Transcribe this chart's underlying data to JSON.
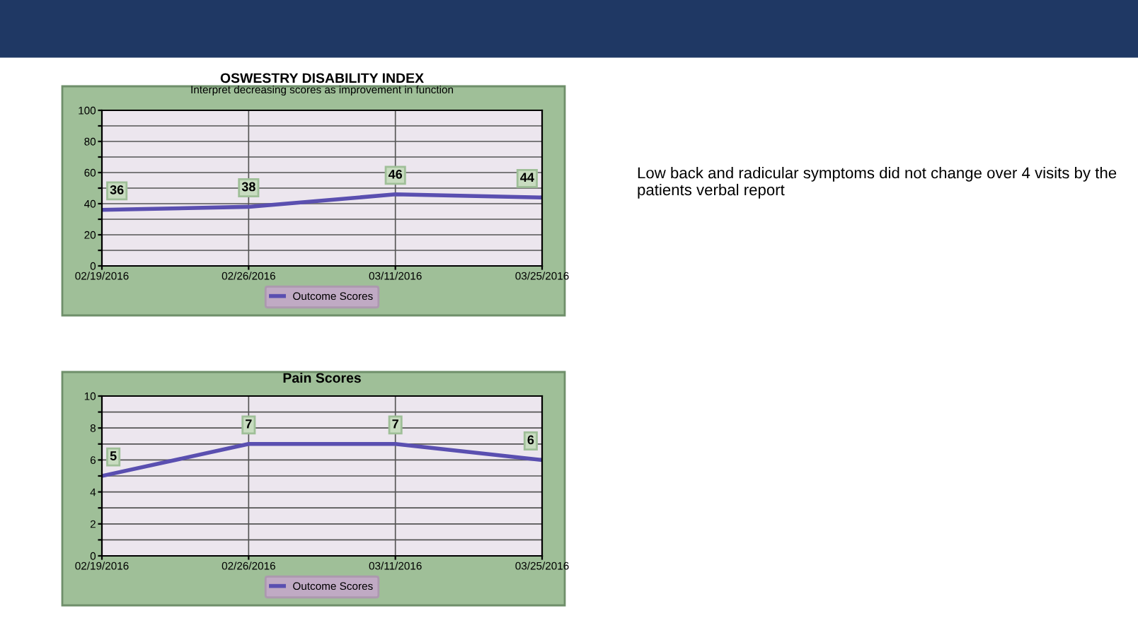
{
  "chart_data": [
    {
      "type": "line",
      "title": "OSWESTRY DISABILITY INDEX",
      "subtitle": "Interpret decreasing scores as improvement in function",
      "categories": [
        "02/19/2016",
        "02/26/2016",
        "03/11/2016",
        "03/25/2016"
      ],
      "series": [
        {
          "name": "Outcome Scores",
          "color": "#5a4fb0",
          "values": [
            36,
            38,
            46,
            44
          ]
        }
      ],
      "ylim": [
        0,
        100
      ],
      "yticks": [
        0,
        {
          "value": 10,
          "label": null
        },
        20,
        {
          "value": 30,
          "label": null
        },
        40,
        {
          "value": 50,
          "label": null
        },
        60,
        {
          "value": 70,
          "label": null
        },
        80,
        {
          "value": 90,
          "label": null
        },
        100
      ],
      "grid": true,
      "legend": "bottom",
      "data_labels": true
    },
    {
      "type": "line",
      "title": "Pain Scores",
      "categories": [
        "02/19/2016",
        "02/26/2016",
        "03/11/2016",
        "03/25/2016"
      ],
      "series": [
        {
          "name": "Outcome Scores",
          "color": "#5a4fb0",
          "values": [
            5,
            7,
            7,
            6
          ]
        }
      ],
      "ylim": [
        0,
        10
      ],
      "yticks": [
        0,
        {
          "value": 1,
          "label": null
        },
        2,
        {
          "value": 3,
          "label": null
        },
        4,
        {
          "value": 5,
          "label": null
        },
        6,
        {
          "value": 7,
          "label": null
        },
        8,
        {
          "value": 9,
          "label": null
        },
        10
      ],
      "grid": true,
      "legend": "bottom",
      "data_labels": true
    },
    {
      "type": "other",
      "annotations": [
        "Low back and radicular symptoms did not change over 4 visits by the patients verbal report"
      ]
    }
  ]
}
